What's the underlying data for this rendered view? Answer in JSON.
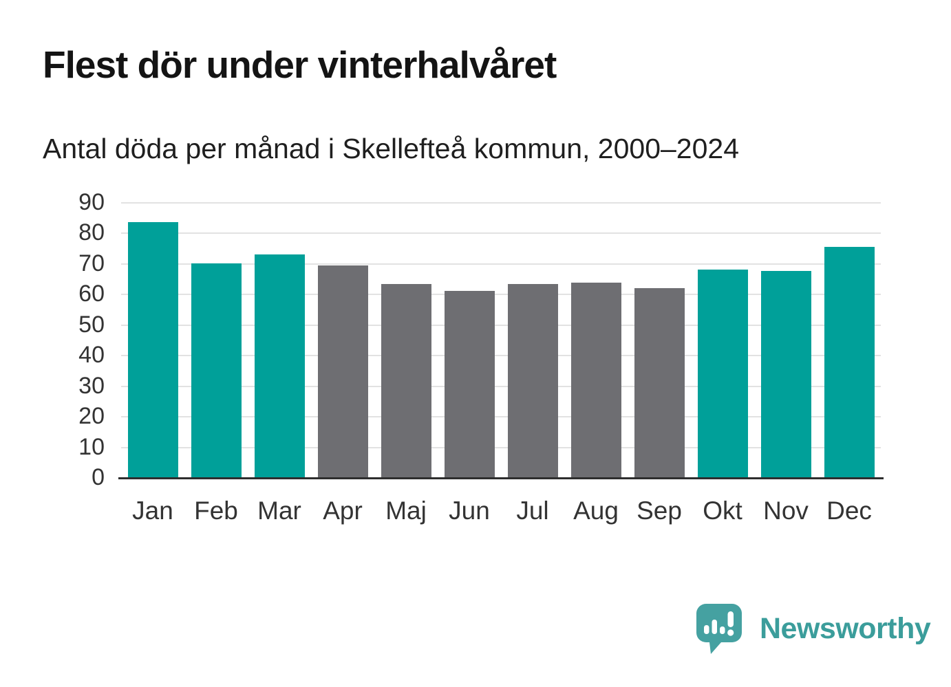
{
  "title": "Flest dör under vinterhalvåret",
  "subtitle": "Antal döda per månad i Skellefteå kommun, 2000–2024",
  "chart_data": {
    "type": "bar",
    "categories": [
      "Jan",
      "Feb",
      "Mar",
      "Apr",
      "Maj",
      "Jun",
      "Jul",
      "Aug",
      "Sep",
      "Okt",
      "Nov",
      "Dec"
    ],
    "values": [
      83.6,
      70.1,
      73.1,
      69.6,
      63.5,
      61.2,
      63.4,
      63.9,
      62.2,
      68.1,
      67.7,
      75.7
    ],
    "bar_color_keys": [
      "teal",
      "teal",
      "teal",
      "gray",
      "gray",
      "gray",
      "gray",
      "gray",
      "gray",
      "teal",
      "teal",
      "teal"
    ],
    "colors": {
      "teal": "#00a099",
      "gray": "#6e6e72"
    },
    "title": "Flest dör under vinterhalvåret",
    "xlabel": "",
    "ylabel": "",
    "ylim": [
      0,
      90
    ],
    "yticks": [
      0,
      10,
      20,
      30,
      40,
      50,
      60,
      70,
      80,
      90
    ],
    "grid": true,
    "legend": "none",
    "gridline_color": "#e2e2e2",
    "axis_line_color": "#2e2e2e",
    "tick_label_color": "#333333"
  },
  "branding": {
    "logo_text": "Newsworthy",
    "logo_color": "#3b9d9b",
    "logo_bubble_color": "#45a1a1",
    "logo_icon": "speech-bubble-bar-chart-icon"
  }
}
